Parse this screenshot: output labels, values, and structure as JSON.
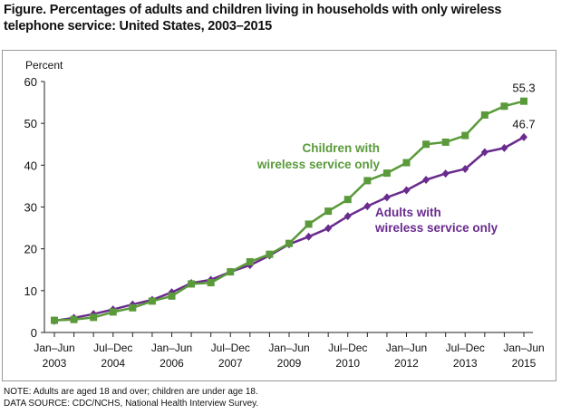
{
  "title": "Figure. Percentages of adults and children living in households with only wireless telephone service: United States, 2003–2015",
  "notes": {
    "note": "NOTE: Adults are aged 18 and over; children are under age 18.",
    "source": "DATA SOURCE: CDC/NCHS, National Health Interview Survey."
  },
  "chart_data": {
    "type": "line",
    "title": "Figure. Percentages of adults and children living in households with only wireless telephone service: United States, 2003–2015",
    "ylabel": "Percent",
    "xlabel": "",
    "ylim": [
      0,
      60
    ],
    "yticks": [
      0,
      10,
      20,
      30,
      40,
      50,
      60
    ],
    "grid": false,
    "x": [
      "Jan–Jun 2003",
      "Jul–Dec 2003",
      "Jan–Jun 2004",
      "Jul–Dec 2004",
      "Jan–Jun 2005",
      "Jul–Dec 2005",
      "Jan–Jun 2006",
      "Jul–Dec 2006",
      "Jan–Jun 2007",
      "Jul–Dec 2007",
      "Jan–Jun 2008",
      "Jul–Dec 2008",
      "Jan–Jun 2009",
      "Jul–Dec 2009",
      "Jan–Jun 2010",
      "Jul–Dec 2010",
      "Jan–Jun 2011",
      "Jul–Dec 2011",
      "Jan–Jun 2012",
      "Jul–Dec 2012",
      "Jan–Jun 2013",
      "Jul–Dec 2013",
      "Jan–Jun 2014",
      "Jul–Dec 2014",
      "Jan–Jun 2015"
    ],
    "xtick_labels": [
      {
        "index": 0,
        "line1": "Jan–Jun",
        "line2": "2003"
      },
      {
        "index": 3,
        "line1": "Jul–Dec",
        "line2": "2004"
      },
      {
        "index": 6,
        "line1": "Jan–Jun",
        "line2": "2006"
      },
      {
        "index": 9,
        "line1": "Jul–Dec",
        "line2": "2007"
      },
      {
        "index": 12,
        "line1": "Jan–Jun",
        "line2": "2009"
      },
      {
        "index": 15,
        "line1": "Jul–Dec",
        "line2": "2010"
      },
      {
        "index": 18,
        "line1": "Jan–Jun",
        "line2": "2012"
      },
      {
        "index": 21,
        "line1": "Jul–Dec",
        "line2": "2013"
      },
      {
        "index": 24,
        "line1": "Jan–Jun",
        "line2": "2015"
      }
    ],
    "series": [
      {
        "name": "Children with wireless service only",
        "label_lines": [
          "Children with",
          "wireless service only"
        ],
        "color": "#5a9a3a",
        "marker": "square",
        "values": [
          2.9,
          3.1,
          3.6,
          4.9,
          5.9,
          7.5,
          8.7,
          11.6,
          11.9,
          14.5,
          16.9,
          18.7,
          21.3,
          25.9,
          29.0,
          31.8,
          36.3,
          38.1,
          40.6,
          45.0,
          45.5,
          47.1,
          52.0,
          54.1,
          55.3
        ],
        "end_label": "55.3"
      },
      {
        "name": "Adults with wireless service only",
        "label_lines": [
          "Adults with",
          "wireless service only"
        ],
        "color": "#6a2b8e",
        "marker": "diamond",
        "values": [
          2.8,
          3.5,
          4.4,
          5.5,
          6.7,
          7.8,
          9.6,
          11.8,
          12.6,
          14.5,
          16.1,
          18.4,
          21.1,
          22.9,
          24.9,
          27.8,
          30.2,
          32.3,
          34.0,
          36.5,
          38.0,
          39.1,
          43.1,
          44.1,
          46.7
        ],
        "end_label": "46.7"
      }
    ]
  }
}
